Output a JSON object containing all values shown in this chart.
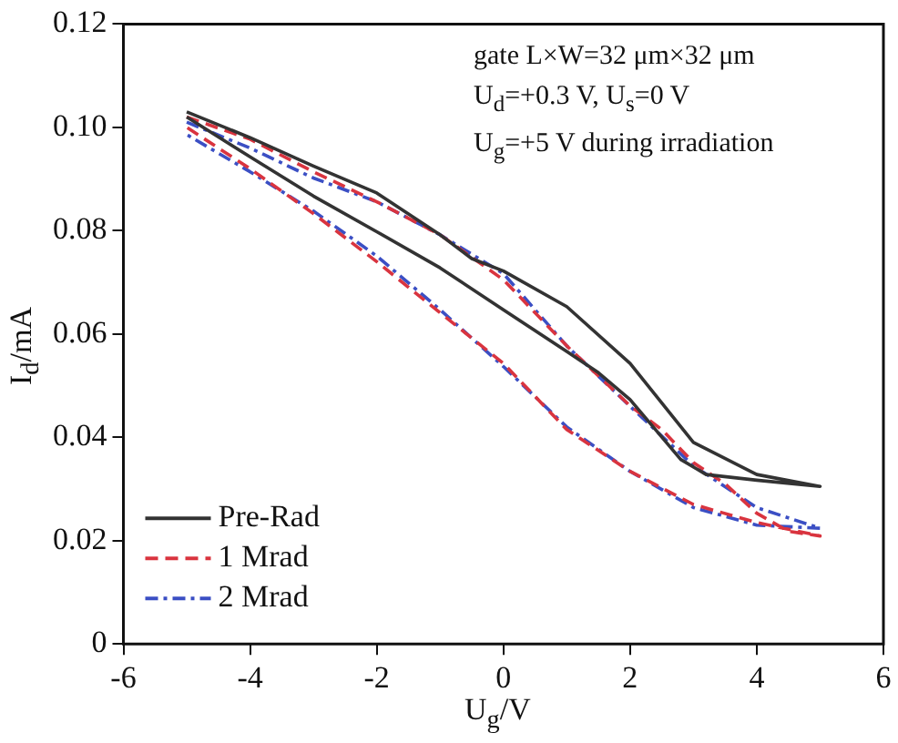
{
  "chart_data": {
    "type": "line",
    "xlabel": "U$_{g}$/V",
    "ylabel": "I$_{d}$/mA",
    "xlim": [
      -6,
      6
    ],
    "xticks": [
      -6,
      -4,
      -2,
      0,
      2,
      4,
      6
    ],
    "ylim": [
      0,
      0.12
    ],
    "yticks": [
      0,
      0.02,
      0.04,
      0.06,
      0.08,
      {
        "value": 0.1,
        "label": "0.10"
      },
      0.12
    ],
    "grid": false,
    "legend": "bottom left",
    "marker": "none",
    "annotations": [
      "gate L×W=32 μm×32 μm",
      "U$_{d}$=+0.3 V, U$_{s}$=0 V",
      "U$_{g}$=+5 V during irradiation"
    ],
    "series": [
      {
        "name": "Pre-Rad",
        "color": "#333333",
        "line_style": "solid",
        "x": [
          -5,
          -4,
          -3,
          -2,
          -1,
          -0.5,
          0,
          1,
          2,
          3,
          4,
          5,
          4,
          3.2,
          2.8,
          2,
          1.5,
          1,
          0,
          -1,
          -2,
          -3,
          -4,
          -5
        ],
        "values": [
          0.103,
          0.098,
          0.0925,
          0.0873,
          0.0792,
          0.0746,
          0.0722,
          0.0653,
          0.0543,
          0.039,
          0.0328,
          0.0305,
          0.0317,
          0.0328,
          0.0357,
          0.0473,
          0.0525,
          0.0566,
          0.0647,
          0.0728,
          0.0798,
          0.0867,
          0.0943,
          0.102
        ]
      },
      {
        "name": "1 Mrad",
        "color": "#d9343f",
        "line_style": "dashed",
        "x": [
          -5,
          -4,
          -3,
          -2,
          -1,
          0,
          1,
          2,
          2.5,
          3,
          3.5,
          4,
          4.5,
          5,
          4,
          3,
          2,
          1,
          0,
          -1,
          -2,
          -3,
          -4,
          -5
        ],
        "values": [
          0.102,
          0.0977,
          0.0914,
          0.0856,
          0.0792,
          0.0705,
          0.0577,
          0.0461,
          0.0415,
          0.0351,
          0.031,
          0.0253,
          0.0218,
          0.0209,
          0.0235,
          0.027,
          0.0334,
          0.0415,
          0.0543,
          0.0641,
          0.074,
          0.0833,
          0.092,
          0.1
        ]
      },
      {
        "name": "2 Mrad",
        "color": "#3b4fc4",
        "line_style": "dotted",
        "x": [
          -5,
          -4,
          -3,
          -2,
          -1,
          0,
          0.5,
          1,
          2,
          3,
          4,
          5,
          4,
          3,
          2,
          1,
          0,
          -1,
          -2,
          -3,
          -4,
          -5
        ],
        "values": [
          0.101,
          0.096,
          0.0902,
          0.0856,
          0.0792,
          0.0717,
          0.0647,
          0.0577,
          0.046,
          0.0345,
          0.0264,
          0.0224,
          0.023,
          0.0264,
          0.0334,
          0.042,
          0.0537,
          0.0647,
          0.0751,
          0.0838,
          0.0914,
          0.0986
        ]
      }
    ]
  }
}
